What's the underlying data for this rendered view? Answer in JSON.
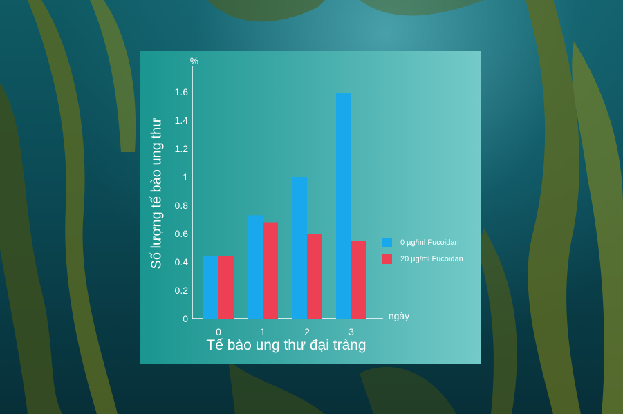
{
  "chart_data": {
    "type": "bar",
    "categories": [
      "0",
      "1",
      "2",
      "3"
    ],
    "series": [
      {
        "name": "0 µg/ml Fucoidan",
        "values": [
          0.44,
          0.73,
          1.0,
          1.59
        ],
        "color": "#1aa8ec"
      },
      {
        "name": "20 µg/ml Fucoidan",
        "values": [
          0.44,
          0.68,
          0.6,
          0.55
        ],
        "color": "#ee4055"
      }
    ],
    "xlabel": "Tế bào ung thư đại tràng",
    "ylabel": "Số lượng tế bào ung thư",
    "x_unit": "ngày",
    "y_unit": "%",
    "yticks": [
      "0",
      "0.2",
      "0.4",
      "0.6",
      "0.8",
      "1",
      "1.2",
      "1.4",
      "1.6"
    ],
    "ylim": [
      0,
      1.7
    ],
    "grid": false,
    "legend_position": "right"
  }
}
